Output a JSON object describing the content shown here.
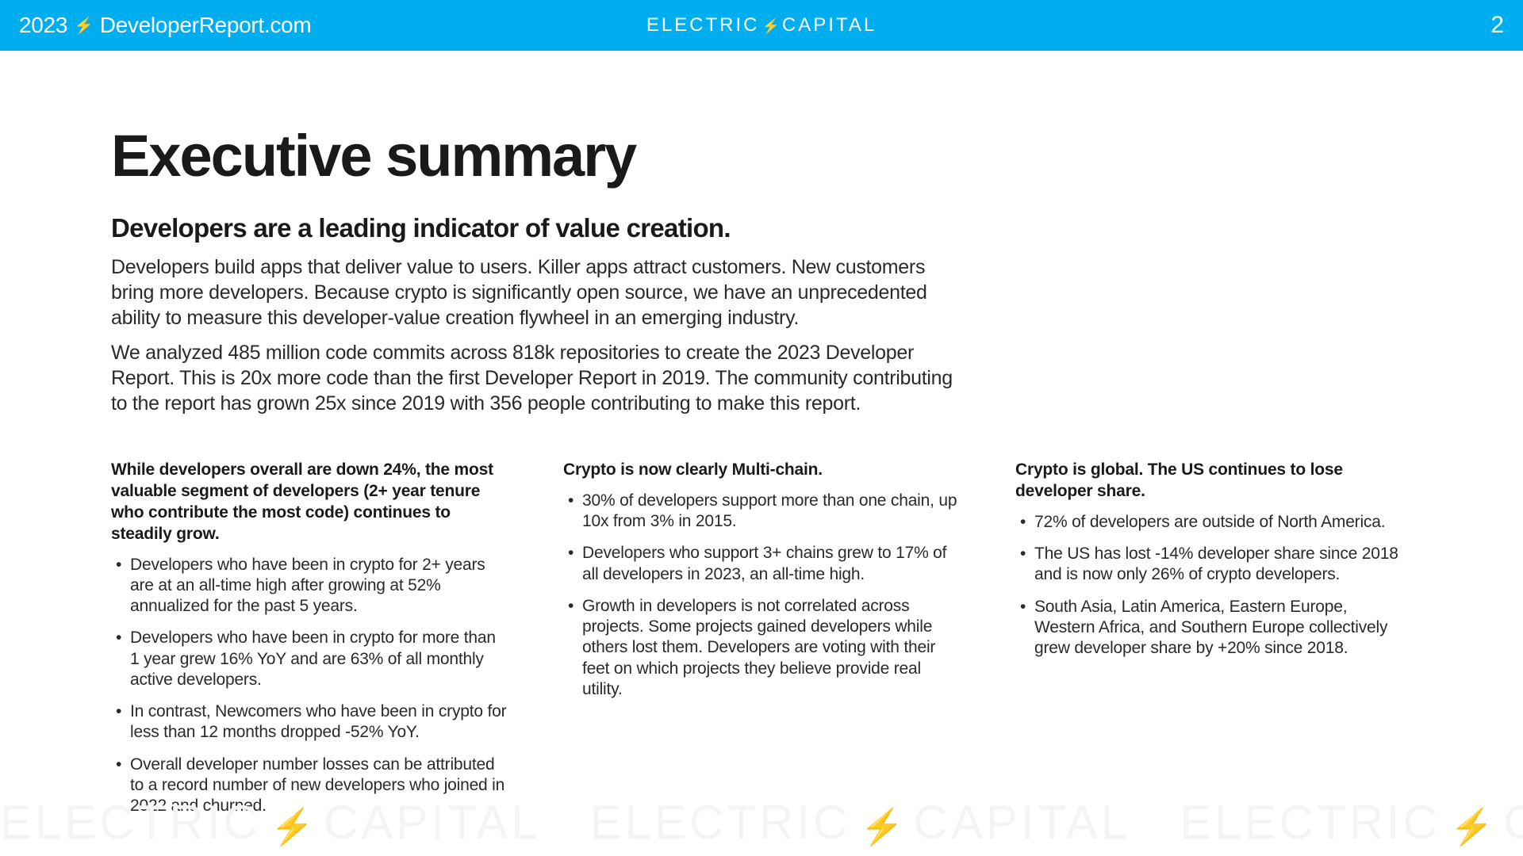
{
  "header": {
    "year": "2023",
    "site": "DeveloperReport.com",
    "brand": "ELECTRIC",
    "brand2": "CAPITAL",
    "page_number": "2",
    "bg_color": "#00aeef"
  },
  "title": "Executive summary",
  "subtitle": "Developers are a leading indicator of value creation.",
  "intro": [
    "Developers build apps that deliver value to users. Killer apps attract customers. New customers bring more developers. Because crypto is significantly open source, we have an unprecedented ability to measure this developer-value creation flywheel in an emerging industry.",
    "We analyzed 485 million code commits across 818k repositories to create the 2023 Developer Report. This is 20x more code than the first Developer Report in 2019. The community contributing to the report has grown 25x since 2019 with 356 people contributing to make this report."
  ],
  "columns": [
    {
      "heading": "While developers overall are down 24%, the most valuable segment of developers (2+ year tenure who contribute the most code) continues to steadily grow.",
      "items": [
        "Developers who have been in crypto for 2+ years are at an all-time high after growing at 52% annualized for the past 5 years.",
        "Developers who have been in crypto for more than 1 year grew 16% YoY and are 63% of all monthly active developers.",
        "In contrast, Newcomers who have been in crypto for less than 12 months dropped -52% YoY.",
        "Overall developer number losses can be attributed to a record number of new developers who joined in 2022 and churned."
      ]
    },
    {
      "heading": "Crypto is now clearly Multi-chain.",
      "items": [
        "30% of developers support more than one chain, up 10x from 3% in 2015.",
        "Developers who support 3+ chains grew to 17% of all developers in 2023, an all-time high.",
        "Growth in developers is not correlated across projects. Some projects gained developers while others lost them. Developers are voting with their feet on which projects they believe provide real utility."
      ]
    },
    {
      "heading": "Crypto is global. The US continues to lose developer share.",
      "items": [
        "72% of developers are outside of North America.",
        "The US has lost -14% developer share since 2018 and is now only 26% of crypto developers.",
        "South Asia, Latin America, Eastern Europe, Western Africa, and Southern Europe collectively grew developer share by +20% since 2018."
      ]
    }
  ],
  "watermark": {
    "text1": "ELECTRIC",
    "text2": "CAPITAL"
  }
}
